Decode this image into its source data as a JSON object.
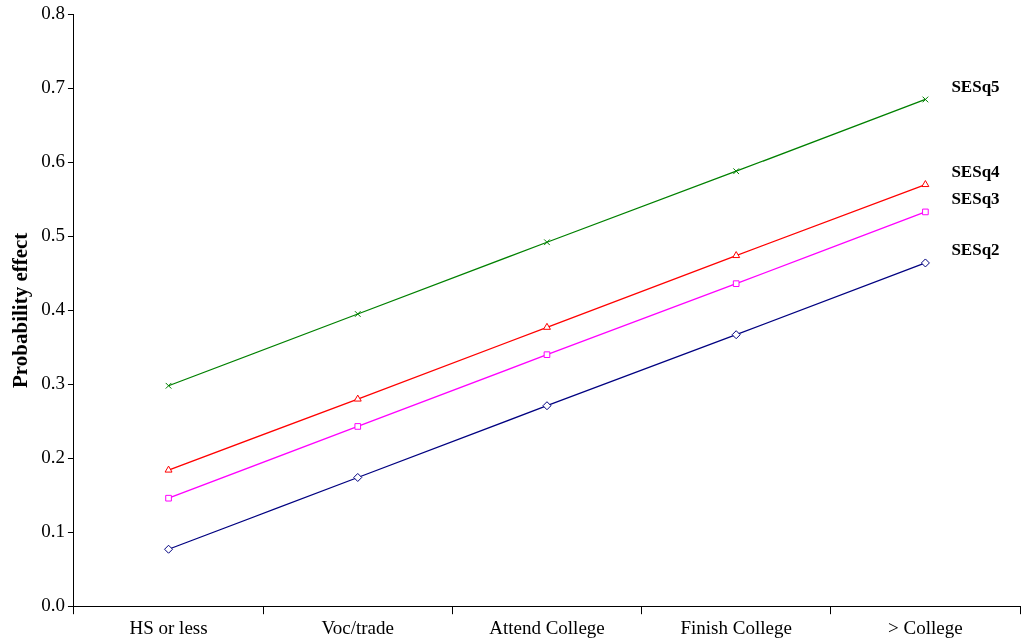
{
  "chart_data": {
    "type": "line",
    "ylabel": "Probability effect",
    "categories": [
      "HS or less",
      "Voc/trade",
      "Attend College",
      "Finish College",
      "> College"
    ],
    "ylim": [
      0,
      0.8
    ],
    "yticks": [
      {
        "value": 0,
        "label": "0.0"
      },
      0.1,
      0.2,
      0.3,
      0.4,
      0.5,
      0.6,
      0.7,
      0.8
    ],
    "grid": false,
    "legend": false,
    "series": [
      {
        "name": "SESq2",
        "color": "#000080",
        "marker": "diamond",
        "values": [
          0.077,
          0.174,
          0.271,
          0.367,
          0.464
        ]
      },
      {
        "name": "SESq3",
        "color": "#ff00ff",
        "marker": "square",
        "values": [
          0.146,
          0.243,
          0.34,
          0.436,
          0.533
        ]
      },
      {
        "name": "SESq4",
        "color": "#ff0000",
        "marker": "triangle",
        "values": [
          0.184,
          0.28,
          0.377,
          0.474,
          0.57
        ]
      },
      {
        "name": "SESq5",
        "color": "#008000",
        "marker": "cross",
        "values": [
          0.298,
          0.395,
          0.492,
          0.588,
          0.685
        ]
      }
    ]
  }
}
